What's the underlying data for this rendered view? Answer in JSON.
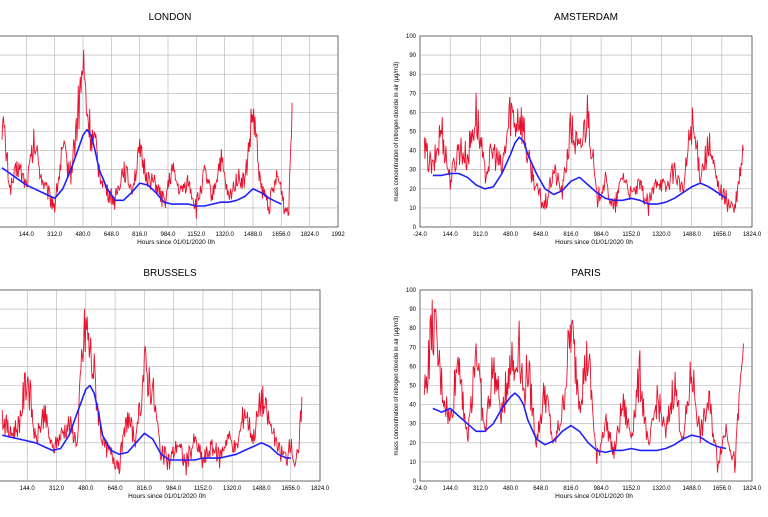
{
  "chart_data": [
    {
      "type": "line",
      "title": "LONDON",
      "xlabel": "Hours since 01/01/2020 0h",
      "ylabel": "",
      "x_ticks": [
        "144.0",
        "312.0",
        "480.0",
        "648.0",
        "816.0",
        "984.0",
        "1152.0",
        "1320.0",
        "1488.0",
        "1656.0",
        "1824.0",
        "1992"
      ],
      "y_ticks": [],
      "xlim": [
        -24,
        1992
      ],
      "ylim": [
        0,
        100
      ],
      "grid": true,
      "series": [
        {
          "color": "#e8112d",
          "kind": "hourly",
          "x": [
            0,
            48,
            96,
            144,
            192,
            240,
            288,
            312,
            360,
            408,
            456,
            480,
            504,
            528,
            552,
            576,
            624,
            672,
            720,
            768,
            816,
            864,
            912,
            960,
            1008,
            1056,
            1104,
            1152,
            1200,
            1248,
            1296,
            1344,
            1392,
            1440,
            1488,
            1536,
            1584,
            1632,
            1656,
            1680,
            1700,
            1720
          ],
          "y": [
            58,
            20,
            32,
            22,
            44,
            24,
            15,
            12,
            40,
            28,
            64,
            85,
            60,
            48,
            42,
            30,
            18,
            14,
            32,
            20,
            38,
            26,
            22,
            12,
            30,
            18,
            24,
            10,
            28,
            16,
            36,
            14,
            26,
            24,
            60,
            20,
            12,
            26,
            20,
            8,
            12,
            65
          ]
        },
        {
          "color": "#2020ff",
          "kind": "smoothed",
          "x": [
            0,
            48,
            96,
            144,
            192,
            240,
            288,
            312,
            360,
            408,
            456,
            480,
            504,
            528,
            552,
            576,
            624,
            672,
            720,
            768,
            816,
            864,
            912,
            960,
            1008,
            1056,
            1104,
            1152,
            1200,
            1248,
            1296,
            1344,
            1392,
            1440,
            1488,
            1536,
            1584,
            1632,
            1656
          ],
          "y": [
            31,
            28,
            25,
            22,
            20,
            18,
            16,
            15,
            20,
            30,
            42,
            48,
            51,
            48,
            40,
            30,
            20,
            14,
            14,
            18,
            23,
            22,
            18,
            13,
            12,
            12,
            12,
            11,
            11,
            12,
            13,
            13,
            14,
            16,
            20,
            18,
            15,
            13,
            12
          ]
        }
      ]
    },
    {
      "type": "line",
      "title": "AMSTERDAM",
      "xlabel": "Hours since 01/01/2020 0h",
      "ylabel": "mass concentration of nitrogen dioxide in air (µg/m3)",
      "x_ticks": [
        "-24.0",
        "144.0",
        "312.0",
        "480.0",
        "648.0",
        "816.0",
        "984.0",
        "1152.0",
        "1320.0",
        "1488.0",
        "1656.0",
        "1824.0"
      ],
      "y_ticks": [
        "0",
        "10",
        "20",
        "30",
        "40",
        "50",
        "60",
        "70",
        "80",
        "90",
        "100"
      ],
      "xlim": [
        -24,
        1824
      ],
      "ylim": [
        0,
        100
      ],
      "grid": true,
      "series": [
        {
          "color": "#e8112d",
          "kind": "hourly",
          "x": [
            0,
            48,
            96,
            144,
            192,
            240,
            288,
            336,
            384,
            432,
            456,
            480,
            504,
            528,
            552,
            576,
            624,
            672,
            720,
            768,
            816,
            864,
            912,
            960,
            1008,
            1056,
            1104,
            1152,
            1200,
            1248,
            1296,
            1344,
            1392,
            1440,
            1488,
            1536,
            1584,
            1632,
            1680,
            1728,
            1776
          ],
          "y": [
            40,
            30,
            52,
            24,
            42,
            36,
            60,
            28,
            40,
            30,
            45,
            62,
            55,
            60,
            52,
            36,
            20,
            10,
            30,
            18,
            52,
            38,
            62,
            14,
            24,
            8,
            28,
            16,
            22,
            10,
            26,
            20,
            30,
            18,
            56,
            28,
            42,
            22,
            14,
            8,
            40
          ]
        },
        {
          "color": "#2020ff",
          "kind": "smoothed",
          "x": [
            48,
            96,
            144,
            192,
            240,
            288,
            336,
            384,
            432,
            480,
            504,
            528,
            552,
            576,
            624,
            672,
            720,
            768,
            816,
            864,
            912,
            960,
            1008,
            1056,
            1104,
            1152,
            1200,
            1248,
            1296,
            1344,
            1392,
            1440,
            1488,
            1536,
            1584,
            1632,
            1680
          ],
          "y": [
            27,
            27,
            28,
            28,
            26,
            22,
            20,
            21,
            28,
            38,
            44,
            47,
            45,
            38,
            28,
            20,
            17,
            19,
            24,
            26,
            22,
            18,
            15,
            14,
            14,
            15,
            14,
            12,
            12,
            13,
            15,
            18,
            21,
            23,
            21,
            18,
            15
          ]
        }
      ]
    },
    {
      "type": "line",
      "title": "BRUSSELS",
      "xlabel": "Hours since 01/01/2020 0h",
      "ylabel": "",
      "x_ticks": [
        "144.0",
        "312.0",
        "480.0",
        "648.0",
        "816.0",
        "984.0",
        "1152.0",
        "1320.0",
        "1488.0",
        "1656.0",
        "1824.0"
      ],
      "y_ticks": [],
      "xlim": [
        -24,
        1824
      ],
      "ylim": [
        0,
        100
      ],
      "grid": true,
      "series": [
        {
          "color": "#e8112d",
          "kind": "hourly",
          "x": [
            0,
            48,
            96,
            144,
            192,
            240,
            288,
            336,
            384,
            432,
            456,
            480,
            504,
            528,
            552,
            576,
            624,
            672,
            720,
            768,
            816,
            864,
            912,
            960,
            1008,
            1056,
            1104,
            1152,
            1200,
            1248,
            1296,
            1344,
            1392,
            1440,
            1488,
            1536,
            1584,
            1632,
            1656,
            1680,
            1700,
            1720
          ],
          "y": [
            34,
            24,
            30,
            56,
            20,
            36,
            16,
            24,
            30,
            20,
            62,
            82,
            68,
            56,
            36,
            20,
            14,
            10,
            34,
            20,
            60,
            48,
            14,
            10,
            20,
            8,
            22,
            10,
            18,
            12,
            24,
            16,
            38,
            22,
            44,
            30,
            16,
            12,
            20,
            10,
            12,
            44
          ]
        },
        {
          "color": "#2020ff",
          "kind": "smoothed",
          "x": [
            0,
            48,
            96,
            144,
            192,
            240,
            288,
            336,
            384,
            432,
            480,
            504,
            528,
            552,
            576,
            624,
            672,
            720,
            768,
            816,
            864,
            912,
            960,
            1008,
            1056,
            1104,
            1152,
            1200,
            1248,
            1296,
            1344,
            1392,
            1440,
            1488,
            1536,
            1584,
            1632,
            1656
          ],
          "y": [
            24,
            23,
            22,
            21,
            20,
            18,
            16,
            17,
            24,
            36,
            48,
            50,
            46,
            36,
            24,
            16,
            14,
            15,
            20,
            25,
            22,
            14,
            11,
            11,
            11,
            11,
            12,
            12,
            12,
            13,
            14,
            16,
            18,
            20,
            18,
            14,
            12,
            12
          ]
        }
      ]
    },
    {
      "type": "line",
      "title": "PARIS",
      "xlabel": "Hours since 01/01/2020 0h",
      "ylabel": "mass concentration of nitrogen dioxide in air (µg/m3)",
      "x_ticks": [
        "-24.0",
        "144.0",
        "312.0",
        "480.0",
        "648.0",
        "816.0",
        "984.0",
        "1152.0",
        "1320.0",
        "1488.0",
        "1656.0",
        "1824.0"
      ],
      "y_ticks": [
        "0",
        "10",
        "20",
        "30",
        "40",
        "50",
        "60",
        "70",
        "80",
        "90",
        "100"
      ],
      "xlim": [
        -24,
        1824
      ],
      "ylim": [
        0,
        100
      ],
      "grid": true,
      "series": [
        {
          "color": "#e8112d",
          "kind": "hourly",
          "x": [
            0,
            48,
            96,
            144,
            192,
            240,
            288,
            336,
            384,
            432,
            456,
            480,
            504,
            528,
            552,
            576,
            624,
            672,
            720,
            768,
            816,
            864,
            912,
            960,
            1008,
            1056,
            1104,
            1152,
            1200,
            1248,
            1296,
            1344,
            1392,
            1440,
            1488,
            1536,
            1584,
            1632,
            1680,
            1728,
            1776
          ],
          "y": [
            44,
            84,
            50,
            30,
            68,
            20,
            72,
            24,
            60,
            34,
            50,
            66,
            56,
            78,
            44,
            60,
            20,
            48,
            18,
            36,
            80,
            44,
            66,
            10,
            32,
            14,
            40,
            24,
            56,
            16,
            44,
            24,
            52,
            20,
            58,
            24,
            42,
            10,
            28,
            8,
            72
          ]
        },
        {
          "color": "#2020ff",
          "kind": "smoothed",
          "x": [
            48,
            96,
            144,
            192,
            240,
            288,
            336,
            384,
            432,
            480,
            504,
            528,
            552,
            576,
            624,
            672,
            720,
            768,
            816,
            864,
            912,
            960,
            1008,
            1056,
            1104,
            1152,
            1200,
            1248,
            1296,
            1344,
            1392,
            1440,
            1488,
            1536,
            1584,
            1632,
            1680
          ],
          "y": [
            38,
            36,
            38,
            34,
            30,
            26,
            26,
            30,
            38,
            44,
            46,
            44,
            40,
            32,
            22,
            19,
            21,
            26,
            29,
            26,
            20,
            16,
            15,
            16,
            16,
            17,
            16,
            16,
            16,
            17,
            19,
            22,
            24,
            23,
            20,
            18,
            17
          ]
        }
      ]
    }
  ]
}
